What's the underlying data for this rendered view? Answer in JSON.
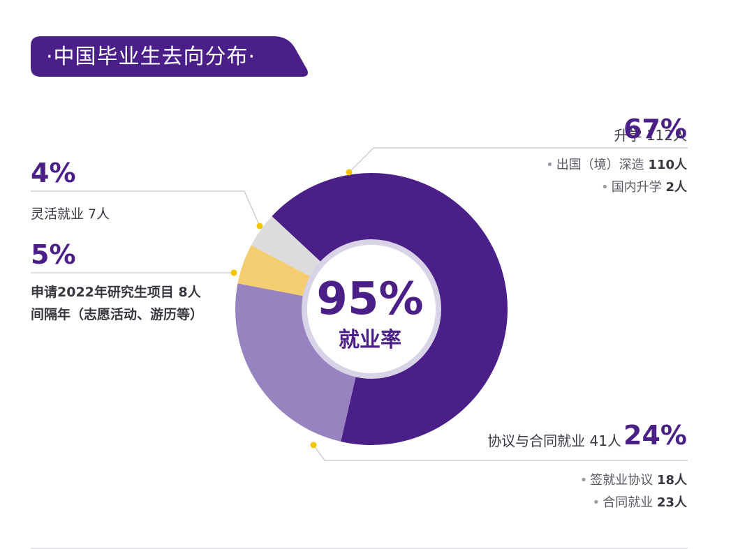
{
  "title": "·中国毕业生去向分布·",
  "center": {
    "value": "95%",
    "label": "就业率"
  },
  "colors": {
    "further_study": "#4a1f87",
    "contract_employment": "#9783c0",
    "gap_year": "#f4cd71",
    "flexible_employment": "#dcdcdc",
    "accent_dot": "#f5c400"
  },
  "labels": {
    "further_study": {
      "name": "升学",
      "count": "112人",
      "percent": "67%",
      "details": [
        {
          "label": "出国（境）深造",
          "value": "110人"
        },
        {
          "label": "国内升学",
          "value": "2人"
        }
      ]
    },
    "contract_employment": {
      "name": "协议与合同就业",
      "count": "41人",
      "percent": "24%",
      "details": [
        {
          "label": "签就业协议",
          "value": "18人"
        },
        {
          "label": "合同就业",
          "value": "23人"
        }
      ]
    },
    "flexible_employment": {
      "percent": "4%",
      "text": "灵活就业 7人"
    },
    "gap_year": {
      "percent": "5%",
      "line1": "申请2022年研究生项目 8人",
      "line2": "间隔年（志愿活动、游历等）"
    }
  },
  "chart_data": {
    "type": "pie",
    "categories": [
      "升学",
      "协议与合同就业",
      "申请2022年研究生项目 8人 间隔年（志愿活动、游历等）",
      "灵活就业"
    ],
    "values": [
      112,
      41,
      8,
      7
    ],
    "percents": [
      67,
      24,
      5,
      4
    ],
    "donut": true,
    "center_label": "95% 就业率"
  }
}
